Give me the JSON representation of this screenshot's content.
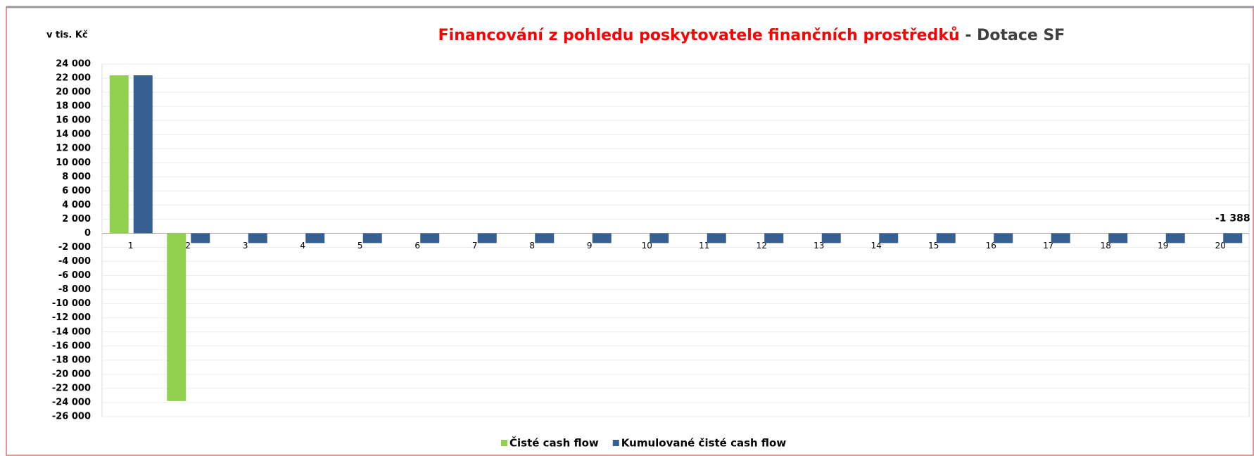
{
  "chart_data": {
    "type": "bar",
    "title": "Financování z pohledu poskytovatele finančních prostředků",
    "subtitle": "- Dotace SF",
    "y_label": "v tis. Kč",
    "categories": [
      "1",
      "2",
      "3",
      "4",
      "5",
      "6",
      "7",
      "8",
      "9",
      "10",
      "11",
      "12",
      "13",
      "14",
      "15",
      "16",
      "17",
      "18",
      "19",
      "20"
    ],
    "series": [
      {
        "name": "Čisté cash flow",
        "color": "#92d050",
        "values": [
          22400,
          -23788,
          0,
          0,
          0,
          0,
          0,
          0,
          0,
          0,
          0,
          0,
          0,
          0,
          0,
          0,
          0,
          0,
          0,
          0
        ]
      },
      {
        "name": "Kumulované čisté cash flow",
        "color": "#376092",
        "values": [
          22400,
          -1388,
          -1388,
          -1388,
          -1388,
          -1388,
          -1388,
          -1388,
          -1388,
          -1388,
          -1388,
          -1388,
          -1388,
          -1388,
          -1388,
          -1388,
          -1388,
          -1388,
          -1388,
          -1388
        ],
        "value_labels": [
          null,
          null,
          null,
          null,
          null,
          null,
          null,
          null,
          null,
          null,
          null,
          null,
          null,
          null,
          null,
          null,
          null,
          null,
          null,
          "-1 388"
        ]
      }
    ],
    "ylim": [
      -26000,
      24000
    ],
    "yticks": [
      {
        "value": -26000,
        "label": "-26 000"
      },
      {
        "value": -24000,
        "label": "-24 000"
      },
      {
        "value": -22000,
        "label": "-22 000"
      },
      {
        "value": -20000,
        "label": "-20 000"
      },
      {
        "value": -18000,
        "label": "-18 000"
      },
      {
        "value": -16000,
        "label": "-16 000"
      },
      {
        "value": -14000,
        "label": "-14 000"
      },
      {
        "value": -12000,
        "label": "-12 000"
      },
      {
        "value": -10000,
        "label": "-10 000"
      },
      {
        "value": -8000,
        "label": "-8 000"
      },
      {
        "value": -6000,
        "label": "-6 000"
      },
      {
        "value": -4000,
        "label": "-4 000"
      },
      {
        "value": -2000,
        "label": "-2 000"
      },
      0,
      {
        "value": 2000,
        "label": "2 000"
      },
      {
        "value": 4000,
        "label": "4 000"
      },
      {
        "value": 6000,
        "label": "6 000"
      },
      {
        "value": 8000,
        "label": "8 000"
      },
      {
        "value": 10000,
        "label": "10 000"
      },
      {
        "value": 12000,
        "label": "12 000"
      },
      {
        "value": 14000,
        "label": "14 000"
      },
      {
        "value": 16000,
        "label": "16 000"
      },
      {
        "value": 18000,
        "label": "18 000"
      },
      {
        "value": 20000,
        "label": "20 000"
      },
      {
        "value": 22000,
        "label": "22 000"
      },
      {
        "value": 24000,
        "label": "24 000"
      }
    ],
    "grid": true,
    "legend": "bottom"
  }
}
